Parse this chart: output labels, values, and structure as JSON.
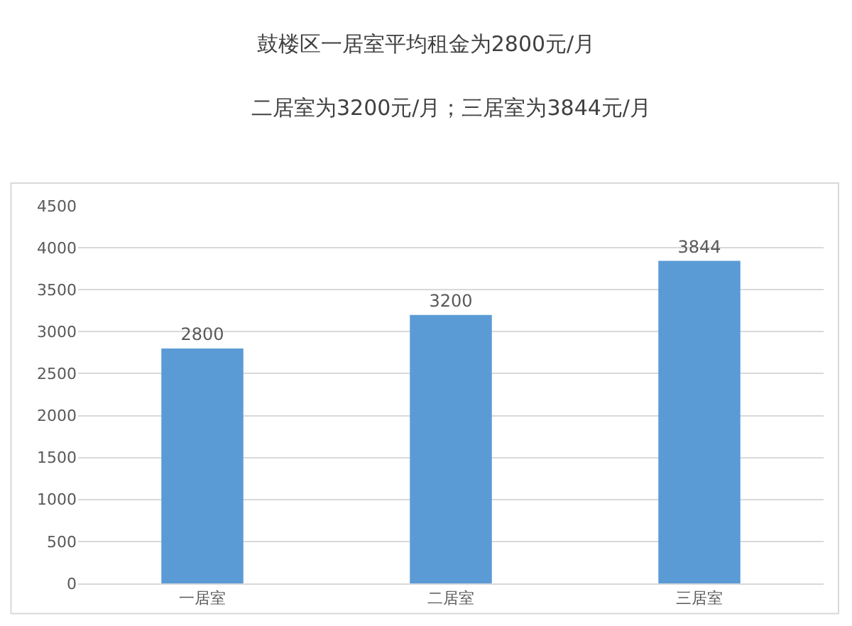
{
  "chart_data": {
    "type": "bar",
    "title": "鼓楼区一居室平均租金为2800元/月",
    "subtitle": "二居室为3200元/月；三居室为3844元/月",
    "categories": [
      "一居室",
      "二居室",
      "三居室"
    ],
    "values": [
      2800,
      3200,
      3844
    ],
    "color": "#5b9bd5",
    "ylim": [
      0,
      4500
    ],
    "yticks": [
      0,
      500,
      1000,
      1500,
      2000,
      2500,
      3000,
      3500,
      4000,
      4500
    ],
    "grid": "y",
    "data_labels": true
  }
}
